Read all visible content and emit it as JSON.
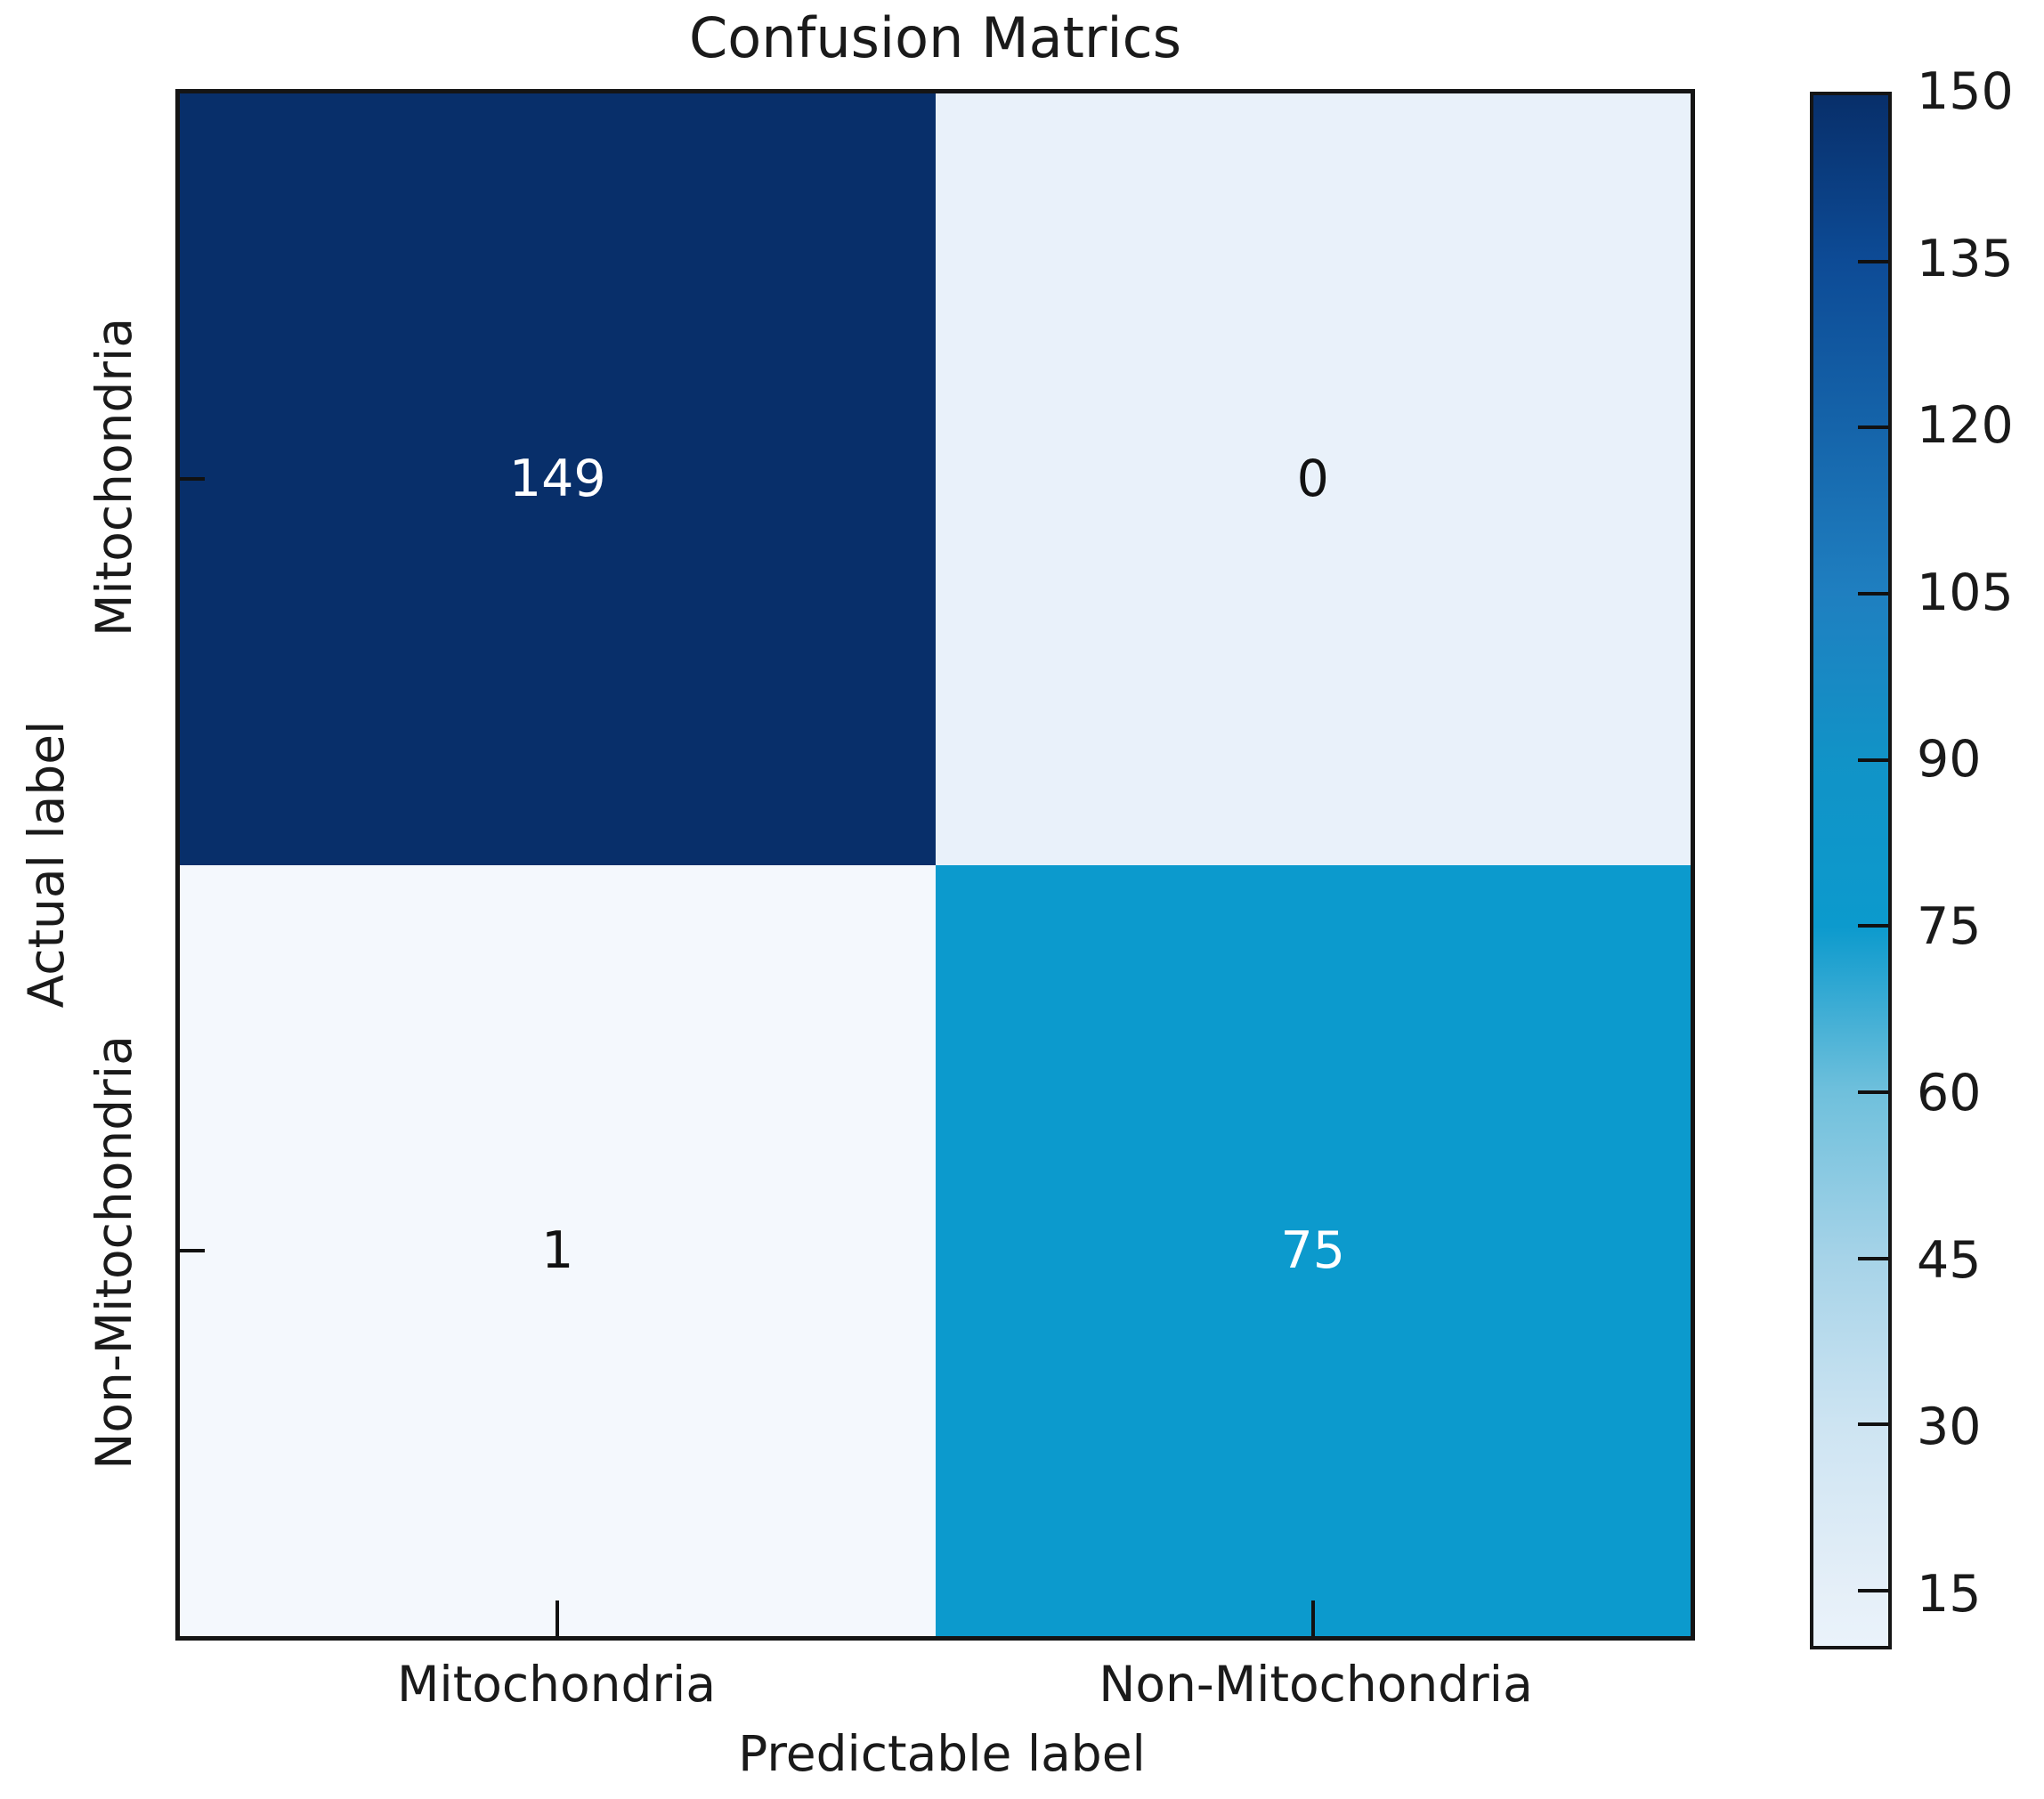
{
  "title": "Confusion Matrics",
  "chart_data": {
    "type": "heatmap",
    "title": "Confusion Matrics",
    "xlabel": "Predictable label",
    "ylabel": "Actual label",
    "x_tick_labels": [
      "Mitochondria",
      "Non-Mitochondria"
    ],
    "y_tick_labels": [
      "Mitochondria",
      "Non-Mitochondria"
    ],
    "matrix": [
      [
        149,
        0
      ],
      [
        1,
        75
      ]
    ],
    "cells": [
      {
        "actual": "Mitochondria",
        "predicted": "Mitochondria",
        "value": 149,
        "bg": "#082f6a",
        "fg": "#ffffff"
      },
      {
        "actual": "Mitochondria",
        "predicted": "Non-Mitochondria",
        "value": 0,
        "bg": "#e9f1fa",
        "fg": "#111111"
      },
      {
        "actual": "Non-Mitochondria",
        "predicted": "Mitochondria",
        "value": 1,
        "bg": "#f4f8fd",
        "fg": "#111111"
      },
      {
        "actual": "Non-Mitochondria",
        "predicted": "Non-Mitochondria",
        "value": 75,
        "bg": "#0c9acd",
        "fg": "#ffffff"
      }
    ],
    "colormap": "Blues",
    "grid": false,
    "colorbar": {
      "position": "right",
      "vmax": 150,
      "vmin_visual": 10,
      "ticks": [
        150,
        135,
        120,
        105,
        90,
        75,
        60,
        45,
        30,
        15
      ],
      "gradient": [
        {
          "pos": 0,
          "color": "#082f6a"
        },
        {
          "pos": 10.7,
          "color": "#0d4b96"
        },
        {
          "pos": 21.4,
          "color": "#1564aa"
        },
        {
          "pos": 32.1,
          "color": "#1f7fc0"
        },
        {
          "pos": 42.9,
          "color": "#1193c7"
        },
        {
          "pos": 53.6,
          "color": "#0c9acd"
        },
        {
          "pos": 64.3,
          "color": "#6fc0dc"
        },
        {
          "pos": 75.0,
          "color": "#a6d3e8"
        },
        {
          "pos": 85.7,
          "color": "#cde4f2"
        },
        {
          "pos": 96.4,
          "color": "#e5eff8"
        },
        {
          "pos": 100,
          "color": "#eaf3fb"
        }
      ]
    }
  }
}
